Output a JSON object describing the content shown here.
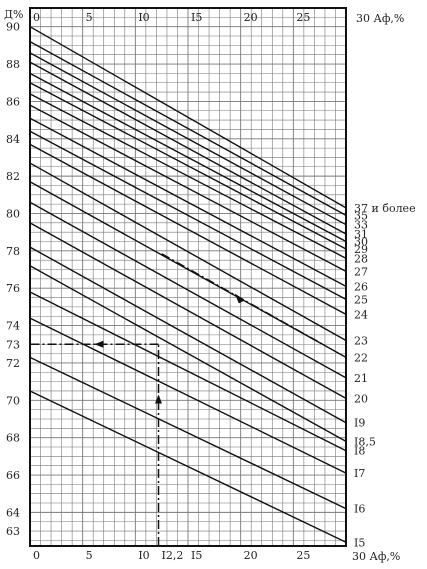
{
  "chart_data": {
    "type": "line",
    "title": "",
    "ylabel": "Д%",
    "xlabel_top": "30 Аф,%",
    "xlabel_bottom": "30 Аф,%",
    "x_ticks_top": [
      "0",
      "5",
      "I0",
      "I5",
      "20",
      "25"
    ],
    "x_ticks_bottom": [
      "0",
      "5",
      "I0",
      "I2,2",
      "I5",
      "20",
      "25"
    ],
    "y_ticks": [
      "90",
      "88",
      "86",
      "84",
      "82",
      "80",
      "78",
      "76",
      "74",
      "73",
      "72",
      "70",
      "68",
      "66",
      "64",
      "63"
    ],
    "y_tick_values": [
      90,
      88,
      86,
      84,
      82,
      80,
      78,
      76,
      74,
      73,
      72,
      70,
      68,
      66,
      64,
      63
    ],
    "xlim": [
      0,
      30
    ],
    "ylim": [
      62.2,
      91.0
    ],
    "grid": true,
    "series": [
      {
        "name": "37 и более",
        "x": [
          0,
          30
        ],
        "y": [
          90.0,
          80.3
        ]
      },
      {
        "name": "35",
        "x": [
          0,
          30
        ],
        "y": [
          89.2,
          79.9
        ]
      },
      {
        "name": "33",
        "x": [
          0,
          30
        ],
        "y": [
          88.6,
          79.4
        ]
      },
      {
        "name": "31",
        "x": [
          0,
          30
        ],
        "y": [
          88.1,
          78.9
        ]
      },
      {
        "name": "30",
        "x": [
          0,
          30
        ],
        "y": [
          87.5,
          78.5
        ]
      },
      {
        "name": "29",
        "x": [
          0,
          30
        ],
        "y": [
          87.0,
          78.1
        ]
      },
      {
        "name": "28",
        "x": [
          0,
          30
        ],
        "y": [
          86.4,
          77.6
        ]
      },
      {
        "name": "27",
        "x": [
          0,
          30
        ],
        "y": [
          85.8,
          76.9
        ]
      },
      {
        "name": "26",
        "x": [
          0,
          30
        ],
        "y": [
          85.1,
          76.1
        ]
      },
      {
        "name": "25",
        "x": [
          0,
          30
        ],
        "y": [
          84.4,
          75.4
        ]
      },
      {
        "name": "24",
        "x": [
          0,
          30
        ],
        "y": [
          83.7,
          74.6
        ]
      },
      {
        "name": "23",
        "x": [
          0,
          30
        ],
        "y": [
          82.7,
          73.2
        ]
      },
      {
        "name": "22",
        "x": [
          0,
          30
        ],
        "y": [
          81.7,
          72.3
        ]
      },
      {
        "name": "21",
        "x": [
          0,
          30
        ],
        "y": [
          80.6,
          71.2
        ]
      },
      {
        "name": "20",
        "x": [
          0,
          30
        ],
        "y": [
          79.5,
          70.1
        ]
      },
      {
        "name": "I9",
        "x": [
          0,
          30
        ],
        "y": [
          78.2,
          68.8
        ]
      },
      {
        "name": "I8,5",
        "x": [
          0,
          30
        ],
        "y": [
          77.2,
          67.8
        ]
      },
      {
        "name": "I8",
        "x": [
          0,
          30
        ],
        "y": [
          75.8,
          67.3
        ]
      },
      {
        "name": "I7",
        "x": [
          0,
          30
        ],
        "y": [
          74.4,
          66.1
        ]
      },
      {
        "name": "I6",
        "x": [
          0,
          30
        ],
        "y": [
          72.3,
          64.2
        ]
      },
      {
        "name": "I5",
        "x": [
          0,
          30
        ],
        "y": [
          70.5,
          62.4
        ]
      }
    ],
    "annotation": {
      "x_value": 12.2,
      "y_value": 73,
      "line": "23"
    }
  }
}
